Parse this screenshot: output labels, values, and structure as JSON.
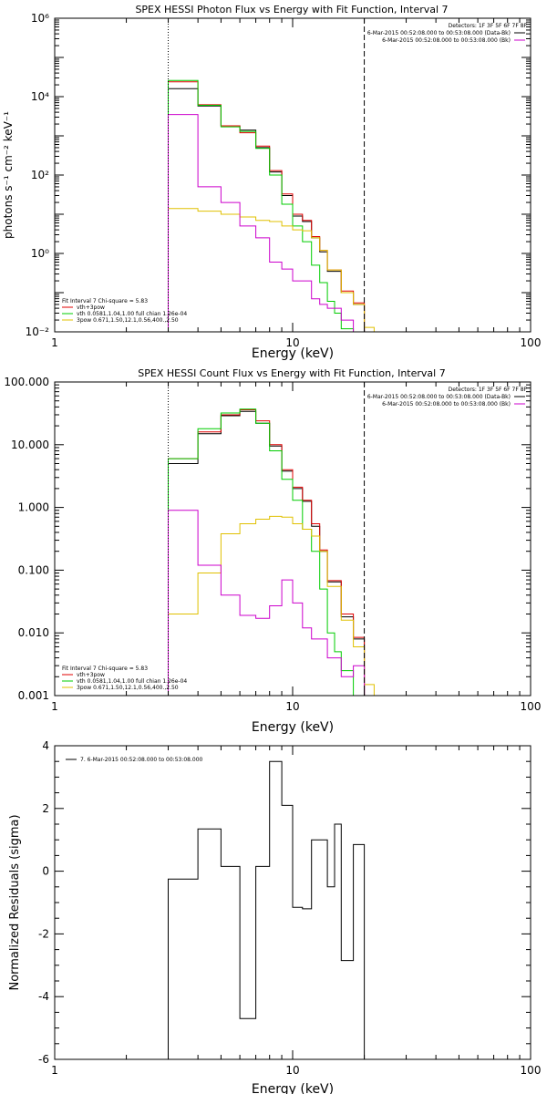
{
  "colors": {
    "total": "#000000",
    "fit": "#e00000",
    "vth": "#00cc00",
    "bpow": "#e0c000",
    "sum": "#cc00cc",
    "axis": "#000000"
  },
  "chart_data": [
    {
      "type": "line",
      "title": "SPEX HESSI Photon Flux vs Energy with Fit Function, Interval 7",
      "xlabel": "Energy (keV)",
      "ylabel": "photons s⁻¹ cm⁻² keV⁻¹",
      "xscale": "log",
      "yscale": "log",
      "xlim": [
        1,
        100
      ],
      "ylim": [
        0.01,
        1000000
      ],
      "xticks": [
        {
          "v": 1,
          "label": "1"
        },
        {
          "v": 10,
          "label": "10"
        },
        {
          "v": 100,
          "label": "100"
        }
      ],
      "yticks": [
        {
          "v": 0.01,
          "label": "10⁻²"
        },
        {
          "v": 1,
          "label": "10⁰"
        },
        {
          "v": 100,
          "label": "10²"
        },
        {
          "v": 10000,
          "label": "10⁴"
        },
        {
          "v": 1000000,
          "label": "10⁶"
        }
      ],
      "vlines": [
        {
          "x": 3.0,
          "style": "dotted"
        },
        {
          "x": 20.0,
          "style": "dashed"
        }
      ],
      "detectors": "Detectors: 1F 3F 5F 6F 7F 8F",
      "legend_top": [
        {
          "text": "6-Mar-2015 00:52:08.000 to 00:53:08.000 (Data-Bk)",
          "color": "#000000"
        },
        {
          "text": "6-Mar-2015 00:52:08.000 to 00:53:08.000 (Bk)",
          "color": "#cc00cc"
        }
      ],
      "fit_header": "Fit Interval  7    Chi-square = 5.83",
      "legend_bottom": [
        {
          "text": "vth+3pow",
          "color": "#e00000"
        },
        {
          "text": "vth 0.0581,1.04,1.00  full chian 1.26e-04",
          "color": "#00cc00"
        },
        {
          "text": "3pow 0.671,1.50,12.1,0.56,400.,2.50",
          "color": "#e0c000"
        }
      ],
      "edges": [
        3.0,
        3.5,
        4.0,
        4.5,
        5.0,
        6.0,
        7.0,
        8.0,
        9.0,
        10.0,
        11.0,
        12.0,
        13.0,
        14.0,
        15.0,
        16.0,
        18.0,
        20.0,
        22.0
      ],
      "series": [
        {
          "key": "total",
          "color": "#000000",
          "values": [
            16000,
            16000,
            5800,
            5800,
            1800,
            1400,
            500,
            120,
            30,
            9,
            6.5,
            2.5,
            1.1,
            0.35,
            0.35,
            0.1,
            0.05,
            null
          ]
        },
        {
          "key": "fit",
          "color": "#e00000",
          "values": [
            24000,
            24000,
            6200,
            6200,
            1800,
            1200,
            550,
            130,
            33,
            10,
            7,
            2.7,
            1.2,
            0.38,
            0.38,
            0.11,
            0.055,
            null
          ]
        },
        {
          "key": "vth",
          "color": "#00cc00",
          "values": [
            26000,
            26000,
            6000,
            6000,
            1700,
            1300,
            480,
            100,
            18,
            5,
            2,
            0.5,
            0.18,
            0.06,
            0.03,
            0.012,
            null,
            null
          ]
        },
        {
          "key": "bpow",
          "color": "#e0c000",
          "values": [
            14,
            14,
            12,
            12,
            10,
            8.5,
            7,
            6.5,
            5,
            4,
            3.8,
            2.5,
            1.2,
            0.38,
            0.38,
            0.1,
            0.05,
            0.013
          ]
        },
        {
          "key": "sum",
          "color": "#cc00cc",
          "values": [
            3500,
            3500,
            50,
            50,
            20,
            5,
            2.5,
            0.6,
            0.4,
            0.2,
            0.2,
            0.07,
            0.05,
            0.04,
            0.04,
            0.02,
            0.01,
            null
          ]
        }
      ]
    },
    {
      "type": "line",
      "title": "SPEX HESSI Count Flux vs Energy with Fit Function, Interval 7",
      "xlabel": "Energy (keV)",
      "ylabel": "",
      "xscale": "log",
      "yscale": "log",
      "xlim": [
        1,
        100
      ],
      "ylim": [
        0.001,
        100
      ],
      "xticks": [
        {
          "v": 1,
          "label": "1"
        },
        {
          "v": 10,
          "label": "10"
        },
        {
          "v": 100,
          "label": "100"
        }
      ],
      "yticks": [
        {
          "v": 0.001,
          "label": "0.001"
        },
        {
          "v": 0.01,
          "label": "0.010"
        },
        {
          "v": 0.1,
          "label": "0.100"
        },
        {
          "v": 1,
          "label": "1.000"
        },
        {
          "v": 10,
          "label": "10.000"
        },
        {
          "v": 100,
          "label": "100.000"
        }
      ],
      "vlines": [
        {
          "x": 3.0,
          "style": "dotted"
        },
        {
          "x": 20.0,
          "style": "dashed"
        }
      ],
      "detectors": "Detectors: 1F 3F 5F 6F 7F 8F",
      "legend_top": [
        {
          "text": "6-Mar-2015 00:52:08.000 to 00:53:08.000 (Data-Bk)",
          "color": "#000000"
        },
        {
          "text": "6-Mar-2015 00:52:08.000 to 00:53:08.000 (Bk)",
          "color": "#cc00cc"
        }
      ],
      "fit_header": "Fit Interval  7    Chi-square = 5.83",
      "legend_bottom": [
        {
          "text": "vth+3pow",
          "color": "#e00000"
        },
        {
          "text": "vth 0.0581,1.04,1.00  full chian 1.26e-04",
          "color": "#00cc00"
        },
        {
          "text": "3pow 0.671,1.50,12.1,0.56,400.,2.50",
          "color": "#e0c000"
        }
      ],
      "edges": [
        3.0,
        3.5,
        4.0,
        4.5,
        5.0,
        6.0,
        7.0,
        8.0,
        9.0,
        10.0,
        11.0,
        12.0,
        13.0,
        14.0,
        15.0,
        16.0,
        18.0,
        20.0,
        22.0
      ],
      "series": [
        {
          "key": "total",
          "color": "#000000",
          "values": [
            5.0,
            5.0,
            15,
            15,
            29,
            34,
            22,
            9.5,
            3.8,
            2.0,
            1.25,
            0.5,
            0.2,
            0.065,
            0.065,
            0.018,
            0.008,
            null
          ]
        },
        {
          "key": "fit",
          "color": "#e00000",
          "values": [
            6.0,
            6.0,
            16,
            16,
            30,
            36,
            24,
            10,
            4.0,
            2.1,
            1.3,
            0.55,
            0.21,
            0.068,
            0.068,
            0.02,
            0.0085,
            null
          ]
        },
        {
          "key": "vth",
          "color": "#00cc00",
          "values": [
            6.0,
            6.0,
            18,
            18,
            32,
            37,
            22,
            8,
            2.8,
            1.3,
            0.45,
            0.2,
            0.05,
            0.01,
            0.005,
            0.0025,
            null,
            null
          ]
        },
        {
          "key": "bpow",
          "color": "#e0c000",
          "values": [
            0.02,
            0.02,
            0.09,
            0.09,
            0.38,
            0.55,
            0.65,
            0.72,
            0.7,
            0.55,
            0.45,
            0.35,
            0.2,
            0.055,
            0.055,
            0.016,
            0.006,
            0.0015
          ]
        },
        {
          "key": "sum",
          "color": "#cc00cc",
          "values": [
            0.9,
            0.9,
            0.12,
            0.12,
            0.04,
            0.019,
            0.017,
            0.027,
            0.07,
            0.03,
            0.012,
            0.008,
            0.008,
            0.004,
            0.004,
            0.002,
            0.003,
            null
          ]
        }
      ]
    },
    {
      "type": "line",
      "title": "",
      "xlabel": "Energy (keV)",
      "ylabel": "Normalized Residuals (sigma)",
      "xscale": "log",
      "yscale": "linear",
      "xlim": [
        1,
        100
      ],
      "ylim": [
        -6,
        4
      ],
      "xticks": [
        {
          "v": 1,
          "label": "1"
        },
        {
          "v": 10,
          "label": "10"
        },
        {
          "v": 100,
          "label": "100"
        }
      ],
      "yticks": [
        {
          "v": -6,
          "label": "-6"
        },
        {
          "v": -4,
          "label": "-4"
        },
        {
          "v": -2,
          "label": "-2"
        },
        {
          "v": 0,
          "label": "0"
        },
        {
          "v": 2,
          "label": "2"
        },
        {
          "v": 4,
          "label": "4"
        }
      ],
      "vlines": [],
      "legend_top_left": "7.  6-Mar-2015 00:52:08.000 to 00:53:08.000",
      "edges": [
        3.0,
        3.5,
        4.0,
        4.5,
        5.0,
        6.0,
        7.0,
        8.0,
        9.0,
        10.0,
        11.0,
        12.0,
        13.0,
        14.0,
        15.0,
        16.0,
        18.0,
        20.0,
        22.0
      ],
      "series": [
        {
          "key": "residuals",
          "color": "#000000",
          "values": [
            -0.25,
            -0.25,
            1.35,
            1.35,
            0.15,
            -4.7,
            0.15,
            3.5,
            2.1,
            -1.15,
            -1.2,
            1.0,
            1.0,
            -0.5,
            1.5,
            -2.85,
            0.85
          ]
        }
      ]
    }
  ]
}
